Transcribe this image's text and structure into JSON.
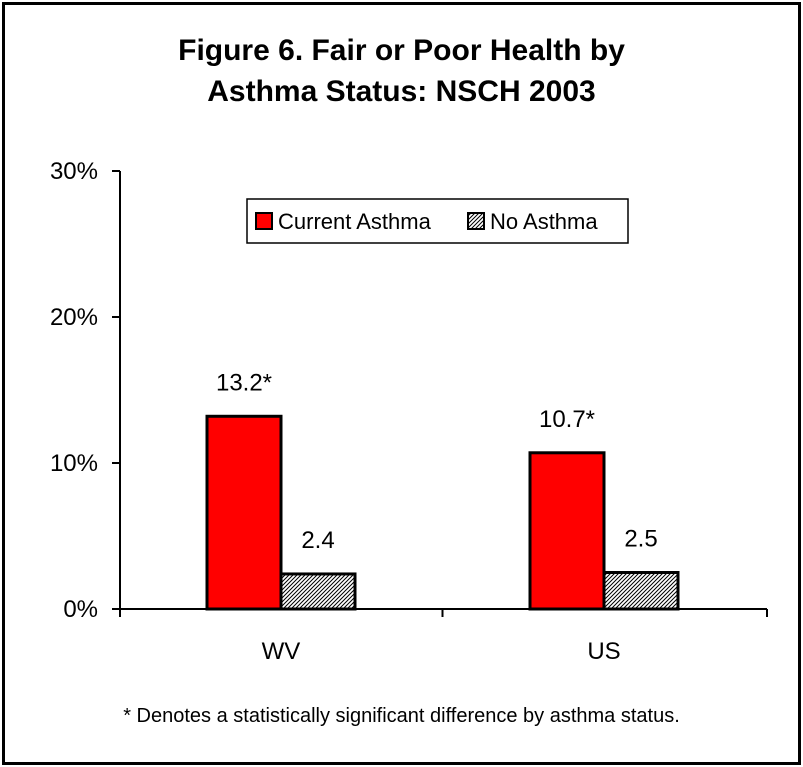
{
  "chart_data": {
    "type": "bar",
    "title_lines": [
      "Figure 6.  Fair or Poor Health by",
      "Asthma Status: NSCH 2003"
    ],
    "categories": [
      "WV",
      "US"
    ],
    "series": [
      {
        "name": "Current Asthma",
        "values": [
          13.2,
          10.7
        ],
        "labels": [
          "13.2*",
          "10.7*"
        ],
        "color": "#ff0000",
        "pattern": "solid"
      },
      {
        "name": "No Asthma",
        "values": [
          2.4,
          2.5
        ],
        "labels": [
          "2.4",
          "2.5"
        ],
        "color": "#ffffff",
        "pattern": "hatched"
      }
    ],
    "ylim": [
      0,
      30
    ],
    "yticks": [
      0,
      10,
      20,
      30
    ],
    "ytick_labels": [
      "0%",
      "10%",
      "20%",
      "30%"
    ],
    "legend_position": "top-right",
    "grid": false
  },
  "footnote": "* Denotes a statistically significant difference by asthma status."
}
